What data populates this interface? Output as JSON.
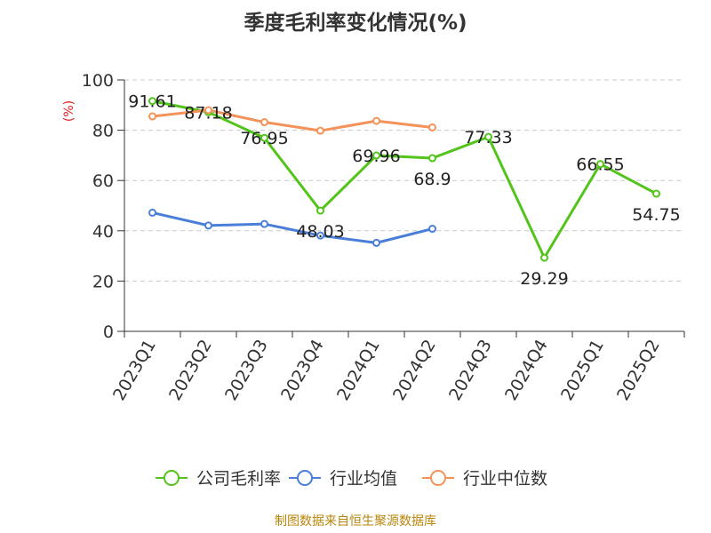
{
  "chart_data": {
    "type": "line",
    "title": "季度毛利率变化情况(%)",
    "ylabel": "(%)",
    "xlabel": "",
    "ylim": [
      0,
      100
    ],
    "yticks": [
      0,
      20,
      40,
      60,
      80,
      100
    ],
    "grid": true,
    "legend_position": "bottom",
    "categories": [
      "2023Q1",
      "2023Q2",
      "2023Q3",
      "2023Q4",
      "2024Q1",
      "2024Q2",
      "2024Q3",
      "2024Q4",
      "2025Q1",
      "2025Q2"
    ],
    "series": [
      {
        "name": "公司毛利率",
        "color": "#52c41a",
        "show_labels": true,
        "values": [
          91.61,
          87.18,
          76.95,
          48.03,
          69.96,
          68.9,
          77.33,
          29.29,
          66.55,
          54.75
        ]
      },
      {
        "name": "行业均值",
        "color": "#4a7fd9",
        "show_labels": false,
        "values": [
          47.2,
          42.1,
          42.7,
          38.1,
          35.2,
          40.8,
          null,
          null,
          null,
          null
        ]
      },
      {
        "name": "行业中位数",
        "color": "#f4925a",
        "show_labels": false,
        "values": [
          85.5,
          88.0,
          83.2,
          79.8,
          83.7,
          81.1,
          null,
          null,
          null,
          null
        ]
      }
    ]
  },
  "source_text": "制图数据来自恒生聚源数据库"
}
